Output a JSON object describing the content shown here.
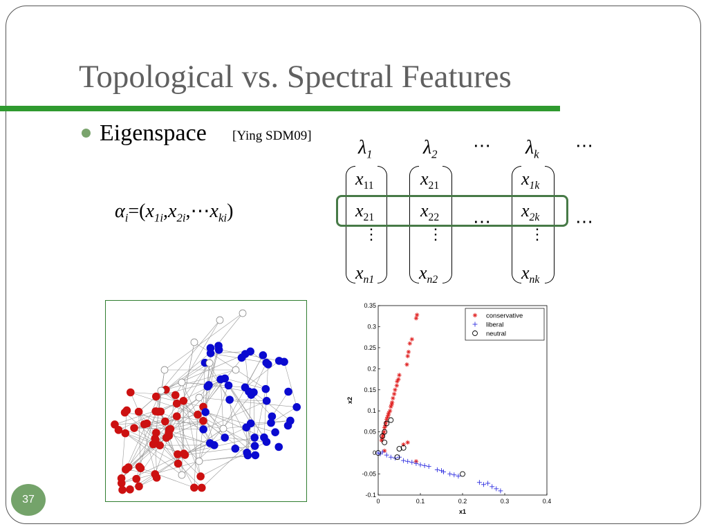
{
  "slide": {
    "title": "Topological vs. Spectral Features",
    "bullet": "Eigenspace",
    "reference": "[Ying SDM09]",
    "slide_number": "37",
    "highlight_color": "#477a47",
    "rule_color": "#2f9a2f"
  },
  "formula": {
    "lhs": "α",
    "lhs_sub": "i",
    "eq": "=(",
    "t1": "x",
    "t1_sub": "1i",
    "t2": "x",
    "t2_sub": "2i",
    "mid": ",⋯",
    "t3": "x",
    "t3_sub": "ki",
    "close": ")"
  },
  "matrix": {
    "lambda": "λ",
    "lambda_subs": [
      "1",
      "2",
      "k"
    ],
    "cells": {
      "c11": "11",
      "c12": "21",
      "c1k": "1k",
      "c21": "21",
      "c22": "22",
      "c2k": "2k",
      "cn1": "n1",
      "cn2": "n2",
      "cnk": "nk"
    },
    "x": "x",
    "hdots": "⋯",
    "vdots": "⋮"
  },
  "network": {
    "red_color": "#cc1111",
    "blue_color": "#0a0ad0",
    "neutral_color": "#ffffff",
    "edge_color": "#999999"
  },
  "chart_data": {
    "type": "scatter",
    "title": "",
    "xlabel": "x1",
    "ylabel": "x2",
    "xlim": [
      0,
      0.4
    ],
    "ylim": [
      -0.1,
      0.35
    ],
    "xticks": [
      "0",
      "0.1",
      "0.2",
      "0.3",
      "0.4"
    ],
    "yticks": [
      "-0.1",
      "-0.05",
      "0",
      "0.05",
      "0.1",
      "0.15",
      "0.2",
      "0.25",
      "0.3",
      "0.35"
    ],
    "legend": "top-right",
    "series": [
      {
        "name": "conservative",
        "marker": "*",
        "color": "#e02020",
        "points": [
          [
            0.09,
            0.32
          ],
          [
            0.092,
            0.328
          ],
          [
            0.08,
            0.27
          ],
          [
            0.075,
            0.26
          ],
          [
            0.072,
            0.24
          ],
          [
            0.07,
            0.23
          ],
          [
            0.068,
            0.21
          ],
          [
            0.05,
            0.185
          ],
          [
            0.048,
            0.175
          ],
          [
            0.045,
            0.17
          ],
          [
            0.044,
            0.16
          ],
          [
            0.04,
            0.15
          ],
          [
            0.038,
            0.14
          ],
          [
            0.035,
            0.13
          ],
          [
            0.033,
            0.12
          ],
          [
            0.032,
            0.115
          ],
          [
            0.03,
            0.11
          ],
          [
            0.028,
            0.1
          ],
          [
            0.025,
            0.095
          ],
          [
            0.024,
            0.09
          ],
          [
            0.022,
            0.085
          ],
          [
            0.02,
            0.08
          ],
          [
            0.018,
            0.072
          ],
          [
            0.017,
            0.065
          ],
          [
            0.015,
            0.06
          ],
          [
            0.014,
            0.05
          ],
          [
            0.012,
            0.045
          ],
          [
            0.011,
            0.04
          ],
          [
            0.01,
            0.035
          ],
          [
            0.008,
            0.03
          ],
          [
            0.06,
            0.02
          ],
          [
            0.07,
            0.025
          ],
          [
            0.09,
            -0.02
          ],
          [
            0.015,
            0.005
          ]
        ]
      },
      {
        "name": "liberal",
        "marker": "+",
        "color": "#3030e0",
        "points": [
          [
            0.0,
            0.0
          ],
          [
            0.005,
            -0.002
          ],
          [
            0.01,
            0.002
          ],
          [
            0.02,
            -0.005
          ],
          [
            0.03,
            -0.01
          ],
          [
            0.04,
            -0.012
          ],
          [
            0.05,
            -0.01
          ],
          [
            0.06,
            -0.018
          ],
          [
            0.07,
            -0.02
          ],
          [
            0.08,
            -0.022
          ],
          [
            0.09,
            -0.025
          ],
          [
            0.1,
            -0.028
          ],
          [
            0.11,
            -0.03
          ],
          [
            0.12,
            -0.032
          ],
          [
            0.14,
            -0.04
          ],
          [
            0.15,
            -0.042
          ],
          [
            0.155,
            -0.045
          ],
          [
            0.17,
            -0.05
          ],
          [
            0.18,
            -0.052
          ],
          [
            0.19,
            -0.055
          ],
          [
            0.24,
            -0.07
          ],
          [
            0.25,
            -0.075
          ],
          [
            0.26,
            -0.072
          ],
          [
            0.27,
            -0.08
          ],
          [
            0.28,
            -0.085
          ],
          [
            0.29,
            -0.09
          ]
        ]
      },
      {
        "name": "neutral",
        "marker": "o",
        "color": "#000000",
        "points": [
          [
            0.0,
            0.0
          ],
          [
            0.01,
            0.04
          ],
          [
            0.015,
            0.05
          ],
          [
            0.02,
            0.07
          ],
          [
            0.03,
            0.078
          ],
          [
            0.015,
            0.025
          ],
          [
            0.05,
            0.01
          ],
          [
            0.06,
            0.012
          ],
          [
            0.045,
            -0.01
          ],
          [
            0.2,
            -0.05
          ]
        ]
      }
    ]
  }
}
